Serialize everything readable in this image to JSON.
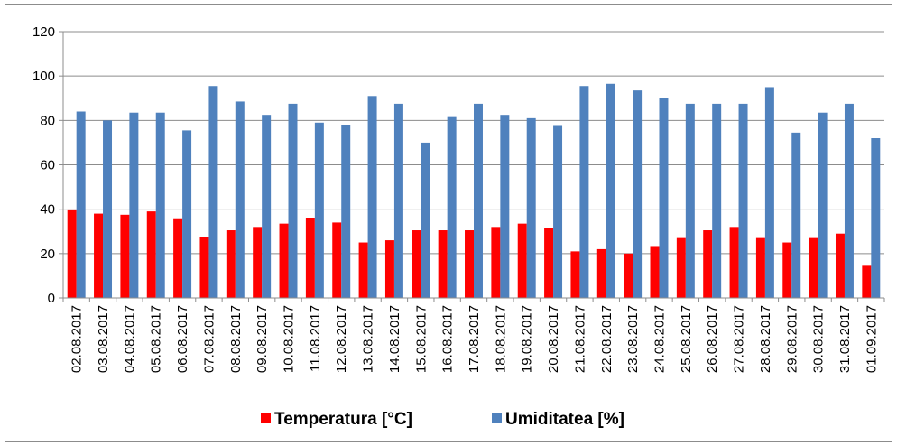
{
  "chart_data": {
    "type": "bar",
    "categories": [
      "02.08.2017",
      "03.08.2017",
      "04.08.2017",
      "05.08.2017",
      "06.08.2017",
      "07.08.2017",
      "08.08.2017",
      "09.08.2017",
      "10.08.2017",
      "11.08.2017",
      "12.08.2017",
      "13.08.2017",
      "14.08.2017",
      "15.08.2017",
      "16.08.2017",
      "17.08.2017",
      "18.08.2017",
      "19.08.2017",
      "20.08.2017",
      "21.08.2017",
      "22.08.2017",
      "23.08.2017",
      "24.08.2017",
      "25.08.2017",
      "26.08.2017",
      "27.08.2017",
      "28.08.2017",
      "29.08.2017",
      "30.08.2017",
      "31.08.2017",
      "01.09.2017"
    ],
    "series": [
      {
        "name": "Temperatura [°C]",
        "color": "#ff0000",
        "values": [
          39.5,
          38,
          37.5,
          39,
          35.5,
          27.5,
          30.5,
          32,
          33.5,
          36,
          34,
          25,
          26,
          30.5,
          30.5,
          30.5,
          32,
          33.5,
          31.5,
          21,
          22,
          20,
          23,
          27,
          30.5,
          32,
          27,
          25,
          27,
          29,
          14.5
        ]
      },
      {
        "name": "Umiditatea [%]",
        "color": "#4f81bd",
        "values": [
          84,
          80,
          83.5,
          83.5,
          75.5,
          95.5,
          88.5,
          82.5,
          87.5,
          79,
          78,
          91,
          87.5,
          70,
          81.5,
          87.5,
          82.5,
          81,
          77.5,
          95.5,
          96.5,
          93.5,
          90,
          87.5,
          87.5,
          87.5,
          95,
          74.5,
          83.5,
          87.5,
          72
        ]
      }
    ],
    "ylim": [
      0,
      120
    ],
    "yticks": [
      "0",
      "20",
      "40",
      "60",
      "80",
      "100",
      "120"
    ],
    "grid": true,
    "legend": "bottom"
  }
}
